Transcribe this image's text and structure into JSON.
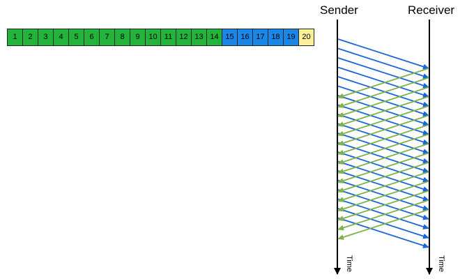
{
  "packets": [
    {
      "label": "1",
      "state": "green"
    },
    {
      "label": "2",
      "state": "green"
    },
    {
      "label": "3",
      "state": "green"
    },
    {
      "label": "4",
      "state": "green"
    },
    {
      "label": "5",
      "state": "green"
    },
    {
      "label": "6",
      "state": "green"
    },
    {
      "label": "7",
      "state": "green"
    },
    {
      "label": "8",
      "state": "green"
    },
    {
      "label": "9",
      "state": "green"
    },
    {
      "label": "10",
      "state": "green"
    },
    {
      "label": "11",
      "state": "green"
    },
    {
      "label": "12",
      "state": "green"
    },
    {
      "label": "13",
      "state": "green"
    },
    {
      "label": "14",
      "state": "green"
    },
    {
      "label": "15",
      "state": "blue"
    },
    {
      "label": "16",
      "state": "blue"
    },
    {
      "label": "17",
      "state": "blue"
    },
    {
      "label": "18",
      "state": "blue"
    },
    {
      "label": "19",
      "state": "blue"
    },
    {
      "label": "20",
      "state": "yellow"
    }
  ],
  "sender_label": "Sender",
  "receiver_label": "Receiver",
  "time_label": "Time",
  "colors": {
    "acked": "#22b33a",
    "sent": "#1a86e8",
    "next": "#fbf09a",
    "data_arrow": "#1a66d8",
    "ack_arrow": "#7fb24a"
  },
  "data_arrow_count": 20,
  "ack_arrow_count": 16
}
